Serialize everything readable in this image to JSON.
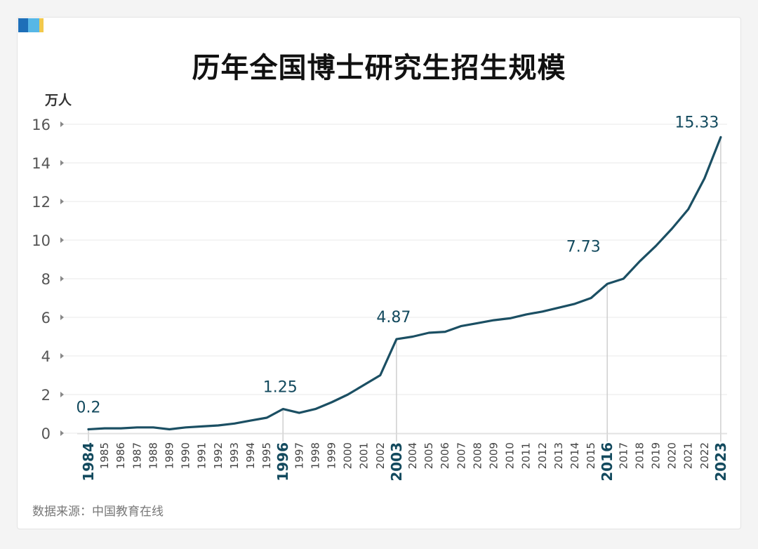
{
  "title": "历年全国博士研究生招生规模",
  "unit_label": "万人",
  "source": "数据来源：中国教育在线",
  "colors": {
    "line": "#1b4f63",
    "highlight": "#134a5e",
    "tick": "#555555",
    "grid": "#e8e8e8"
  },
  "chart_data": {
    "type": "line",
    "x": [
      "1984",
      "1985",
      "1986",
      "1987",
      "1988",
      "1989",
      "1990",
      "1991",
      "1992",
      "1993",
      "1994",
      "1995",
      "1996",
      "1997",
      "1998",
      "1999",
      "2000",
      "2001",
      "2002",
      "2003",
      "2004",
      "2005",
      "2006",
      "2007",
      "2008",
      "2009",
      "2010",
      "2011",
      "2012",
      "2013",
      "2014",
      "2015",
      "2016",
      "2017",
      "2018",
      "2019",
      "2020",
      "2021",
      "2022",
      "2023"
    ],
    "values": [
      0.2,
      0.25,
      0.25,
      0.3,
      0.3,
      0.2,
      0.3,
      0.35,
      0.4,
      0.5,
      0.65,
      0.8,
      1.25,
      1.05,
      1.25,
      1.6,
      2.0,
      2.5,
      3.0,
      4.87,
      5.0,
      5.2,
      5.25,
      5.55,
      5.7,
      5.85,
      5.95,
      6.15,
      6.3,
      6.5,
      6.7,
      7.0,
      7.73,
      8.0,
      8.9,
      9.7,
      10.6,
      11.6,
      13.2,
      15.33
    ],
    "ylim": [
      0,
      16
    ],
    "yticks": [
      0,
      2,
      4,
      6,
      8,
      10,
      12,
      14,
      16
    ],
    "highlight_years": [
      "1984",
      "1996",
      "2003",
      "2016",
      "2023"
    ],
    "annotations": [
      {
        "x": "1984",
        "label": "0.2"
      },
      {
        "x": "1996",
        "label": "1.25"
      },
      {
        "x": "2003",
        "label": "4.87"
      },
      {
        "x": "2016",
        "label": "7.73"
      },
      {
        "x": "2023",
        "label": "15.33"
      }
    ],
    "grid": true,
    "legend": "none"
  }
}
